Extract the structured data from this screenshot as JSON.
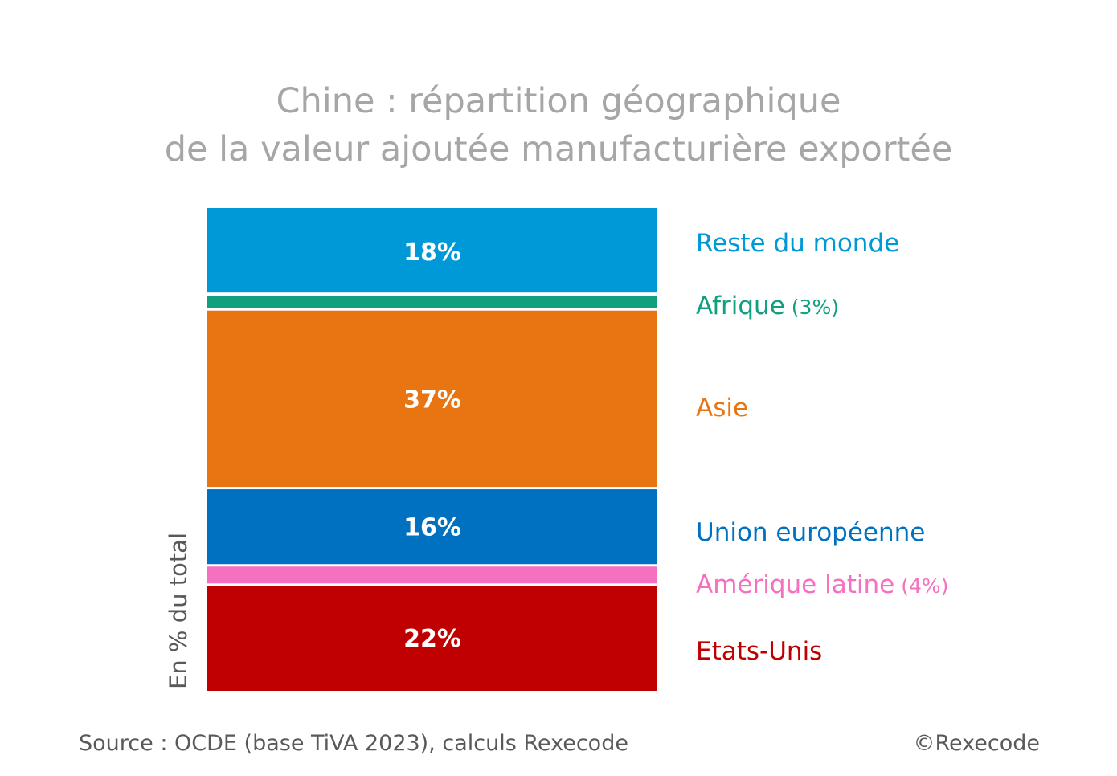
{
  "title_line1": "Chine : répartition géographique",
  "title_line2": "de la valeur ajoutée manufacturière exportée",
  "source": "Source : OCDE (base TiVA 2023), calculs Rexecode",
  "copyright": "©Rexecode",
  "chart_data": {
    "type": "bar",
    "stacked": true,
    "ylabel": "En % du total",
    "ylim": [
      0,
      100
    ],
    "grid": false,
    "legend_position": "right",
    "series": [
      {
        "name": "Etats-Unis",
        "value": 22,
        "data_label": "22%",
        "legend_suffix": "",
        "color": "#c00000"
      },
      {
        "name": "Amérique latine",
        "value": 4,
        "data_label": "",
        "legend_suffix": "(4%)",
        "color": "#f570be"
      },
      {
        "name": "Union européenne",
        "value": 16,
        "data_label": "16%",
        "legend_suffix": "",
        "color": "#0070c0"
      },
      {
        "name": "Asie",
        "value": 37,
        "data_label": "37%",
        "legend_suffix": "",
        "color": "#e87511"
      },
      {
        "name": "Afrique",
        "value": 3,
        "data_label": "",
        "legend_suffix": "(3%)",
        "color": "#10a07f"
      },
      {
        "name": "Reste du monde",
        "value": 18,
        "data_label": "18%",
        "legend_suffix": "",
        "color": "#0099d8"
      }
    ]
  }
}
